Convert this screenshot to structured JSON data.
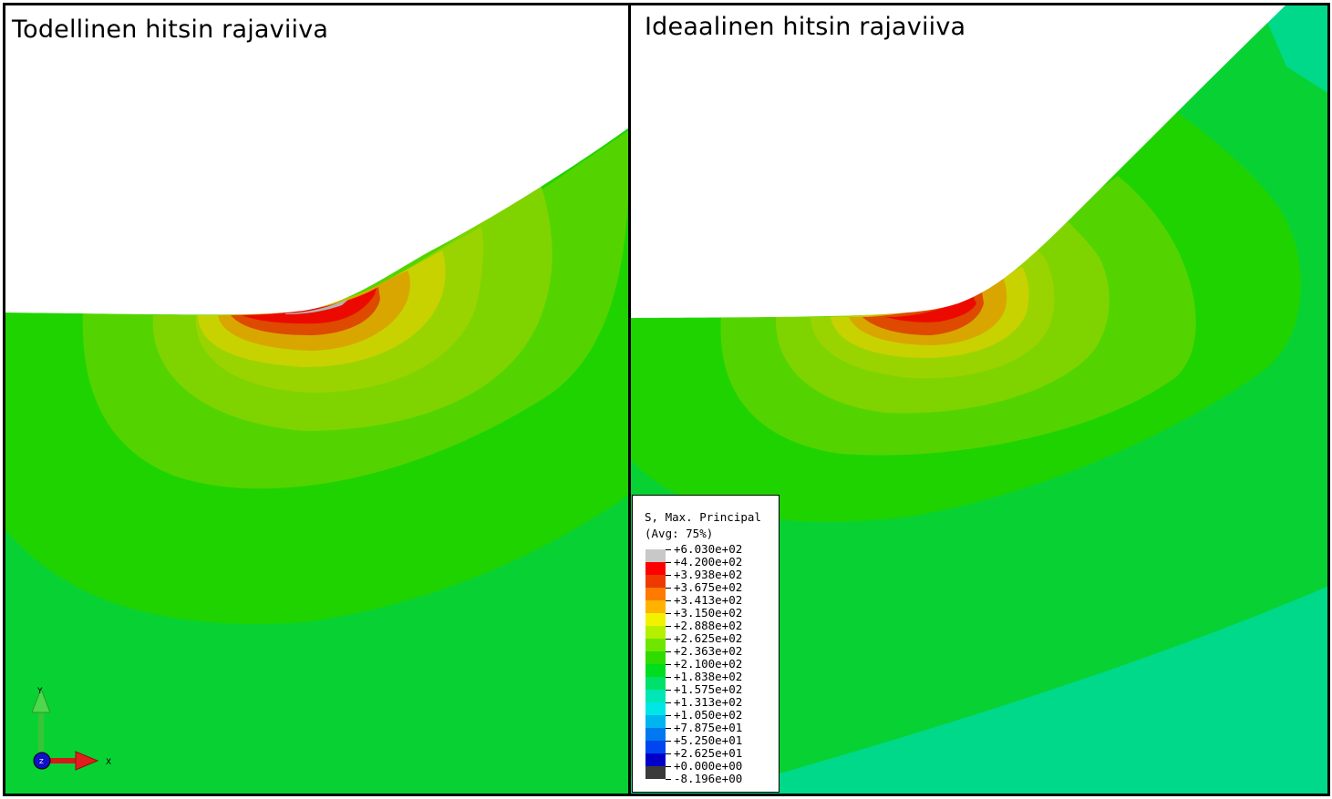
{
  "panels": {
    "left": {
      "title": "Todellinen hitsin rajaviiva"
    },
    "right": {
      "title": "Ideaalinen hitsin rajaviiva"
    }
  },
  "legend": {
    "title_line1": "S, Max. Principal",
    "title_line2": "(Avg: 75%)",
    "entries": [
      {
        "value": "+6.030e+02",
        "color": "#c8c8c8"
      },
      {
        "value": "+4.200e+02",
        "color": "#ff0000"
      },
      {
        "value": "+3.938e+02",
        "color": "#ee3a00"
      },
      {
        "value": "+3.675e+02",
        "color": "#ff7a00"
      },
      {
        "value": "+3.413e+02",
        "color": "#ffb300"
      },
      {
        "value": "+3.150e+02",
        "color": "#f2f200"
      },
      {
        "value": "+2.888e+02",
        "color": "#b4f000"
      },
      {
        "value": "+2.625e+02",
        "color": "#6ee600"
      },
      {
        "value": "+2.363e+02",
        "color": "#2edc00"
      },
      {
        "value": "+2.100e+02",
        "color": "#00dc1e"
      },
      {
        "value": "+1.838e+02",
        "color": "#00e06a"
      },
      {
        "value": "+1.575e+02",
        "color": "#00e6b4"
      },
      {
        "value": "+1.313e+02",
        "color": "#00e6e6"
      },
      {
        "value": "+1.050e+02",
        "color": "#00b4f0"
      },
      {
        "value": "+7.875e+01",
        "color": "#0078f0"
      },
      {
        "value": "+5.250e+01",
        "color": "#0046f0"
      },
      {
        "value": "+2.625e+01",
        "color": "#0014e6"
      },
      {
        "value": "+0.000e+00",
        "color": "#0000c8"
      },
      {
        "value": "-8.196e+00",
        "color": "#3a3a3a"
      }
    ]
  },
  "triad": {
    "y_label": "Y",
    "x_label": "X",
    "z_label": "Z"
  },
  "colors": {
    "band_red": "#ec0a00",
    "band_orange_red": "#dd4a00",
    "band_orange": "#e27c00",
    "band_amber": "#d9a600",
    "band_yellow": "#c8d200",
    "band_yellow_green": "#9ad400",
    "band_lime": "#7fd400",
    "band_green1": "#53d400",
    "band_green2": "#1fd300",
    "band_green3": "#08d233",
    "band_teal": "#00d98a",
    "peak_grey": "#b4b4b4"
  }
}
